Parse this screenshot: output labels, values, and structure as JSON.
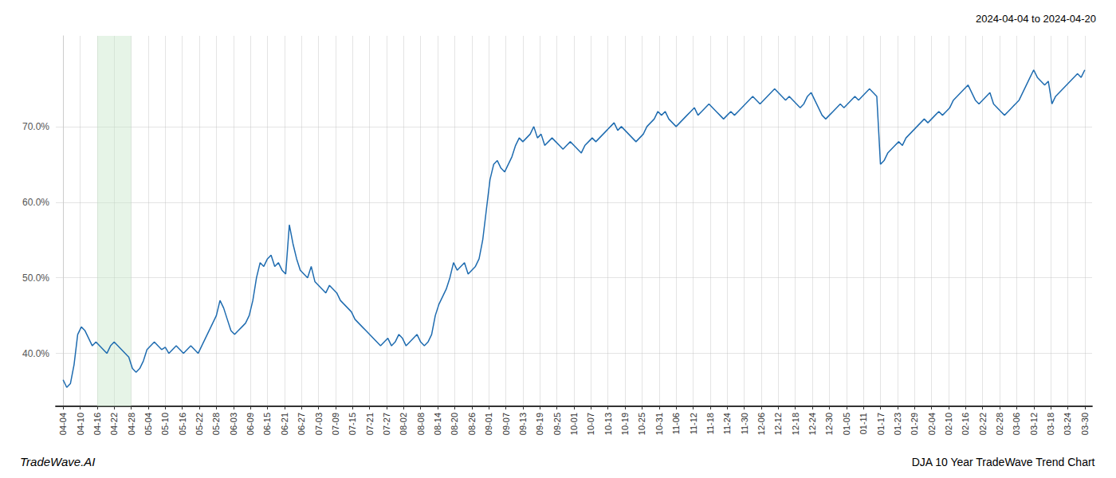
{
  "chart_data": {
    "type": "line",
    "title": "DJA 10 Year TradeWave Trend Chart",
    "subtitle": "2024-04-04 to 2024-04-20",
    "annotations": [
      "TradeWave.AI"
    ],
    "color": "#1f6cb0",
    "grid": true,
    "shaded": {
      "x": [
        9.333333,
        18.666667
      ],
      "color": "#c8e6c9"
    },
    "xlim": [
      -2,
      282
    ],
    "xticks": [
      {
        "value": 0,
        "label": "04-04"
      },
      {
        "value": 4.666667,
        "label": "04-10"
      },
      {
        "value": 9.333333,
        "label": "04-16"
      },
      {
        "value": 14,
        "label": "04-22"
      },
      {
        "value": 18.666667,
        "label": "04-28"
      },
      {
        "value": 23.333333,
        "label": "05-04"
      },
      {
        "value": 28,
        "label": "05-10"
      },
      {
        "value": 32.666667,
        "label": "05-16"
      },
      {
        "value": 37.333333,
        "label": "05-22"
      },
      {
        "value": 42,
        "label": "05-28"
      },
      {
        "value": 46.666667,
        "label": "06-03"
      },
      {
        "value": 51.333333,
        "label": "06-09"
      },
      {
        "value": 56,
        "label": "06-15"
      },
      {
        "value": 60.666667,
        "label": "06-21"
      },
      {
        "value": 65.333333,
        "label": "06-27"
      },
      {
        "value": 70,
        "label": "07-03"
      },
      {
        "value": 74.666667,
        "label": "07-09"
      },
      {
        "value": 79.333333,
        "label": "07-15"
      },
      {
        "value": 84,
        "label": "07-21"
      },
      {
        "value": 88.666667,
        "label": "07-27"
      },
      {
        "value": 93.333333,
        "label": "08-02"
      },
      {
        "value": 98,
        "label": "08-08"
      },
      {
        "value": 102.666667,
        "label": "08-14"
      },
      {
        "value": 107.333333,
        "label": "08-20"
      },
      {
        "value": 112,
        "label": "08-26"
      },
      {
        "value": 116.666667,
        "label": "09-01"
      },
      {
        "value": 121.333333,
        "label": "09-07"
      },
      {
        "value": 126,
        "label": "09-13"
      },
      {
        "value": 130.666667,
        "label": "09-19"
      },
      {
        "value": 135.333333,
        "label": "09-25"
      },
      {
        "value": 140,
        "label": "10-01"
      },
      {
        "value": 144.666667,
        "label": "10-07"
      },
      {
        "value": 149.333333,
        "label": "10-13"
      },
      {
        "value": 154,
        "label": "10-19"
      },
      {
        "value": 158.666667,
        "label": "10-25"
      },
      {
        "value": 163.333333,
        "label": "10-31"
      },
      {
        "value": 168,
        "label": "11-06"
      },
      {
        "value": 172.666667,
        "label": "11-12"
      },
      {
        "value": 177.333333,
        "label": "11-18"
      },
      {
        "value": 182,
        "label": "11-24"
      },
      {
        "value": 186.666667,
        "label": "11-30"
      },
      {
        "value": 191.333333,
        "label": "12-06"
      },
      {
        "value": 196,
        "label": "12-12"
      },
      {
        "value": 200.666667,
        "label": "12-18"
      },
      {
        "value": 205.333333,
        "label": "12-24"
      },
      {
        "value": 210,
        "label": "12-30"
      },
      {
        "value": 214.666667,
        "label": "01-05"
      },
      {
        "value": 219.333333,
        "label": "01-11"
      },
      {
        "value": 224,
        "label": "01-17"
      },
      {
        "value": 228.666667,
        "label": "01-23"
      },
      {
        "value": 233.333333,
        "label": "01-29"
      },
      {
        "value": 238,
        "label": "02-04"
      },
      {
        "value": 242.666667,
        "label": "02-10"
      },
      {
        "value": 247.333333,
        "label": "02-16"
      },
      {
        "value": 252,
        "label": "02-22"
      },
      {
        "value": 256.666667,
        "label": "02-28"
      },
      {
        "value": 261.333333,
        "label": "03-06"
      },
      {
        "value": 266,
        "label": "03-12"
      },
      {
        "value": 270.666667,
        "label": "03-18"
      },
      {
        "value": 275.333333,
        "label": "03-24"
      },
      {
        "value": 280,
        "label": "03-30"
      }
    ],
    "ylim": [
      33,
      82
    ],
    "yticks": [
      {
        "value": 40,
        "label": "40.0%"
      },
      {
        "value": 50,
        "label": "50.0%"
      },
      {
        "value": 60,
        "label": "60.0%"
      },
      {
        "value": 70,
        "label": "70.0%"
      }
    ],
    "values": [
      36.5,
      35.5,
      36.0,
      38.5,
      42.5,
      43.5,
      43.0,
      42.0,
      41.0,
      41.5,
      41.0,
      40.5,
      40.0,
      41.0,
      41.5,
      41.0,
      40.5,
      40.0,
      39.5,
      38.0,
      37.5,
      38.0,
      39.0,
      40.5,
      41.0,
      41.5,
      41.0,
      40.5,
      40.8,
      40.0,
      40.5,
      41.0,
      40.5,
      40.0,
      40.5,
      41.0,
      40.5,
      40.0,
      41.0,
      42.0,
      43.0,
      44.0,
      45.0,
      47.0,
      46.0,
      44.5,
      43.0,
      42.5,
      43.0,
      43.5,
      44.0,
      45.0,
      47.0,
      50.0,
      52.0,
      51.5,
      52.5,
      53.0,
      51.5,
      52.0,
      51.0,
      50.5,
      57.0,
      54.5,
      52.5,
      51.0,
      50.5,
      50.0,
      51.5,
      49.5,
      49.0,
      48.5,
      48.0,
      49.0,
      48.5,
      48.0,
      47.0,
      46.5,
      46.0,
      45.5,
      44.5,
      44.0,
      43.5,
      43.0,
      42.5,
      42.0,
      41.5,
      41.0,
      41.5,
      42.0,
      41.0,
      41.5,
      42.5,
      42.0,
      41.0,
      41.5,
      42.0,
      42.5,
      41.5,
      41.0,
      41.5,
      42.5,
      45.0,
      46.5,
      47.5,
      48.5,
      50.0,
      52.0,
      51.0,
      51.5,
      52.0,
      50.5,
      51.0,
      51.5,
      52.5,
      55.0,
      59.0,
      63.0,
      65.0,
      65.5,
      64.5,
      64.0,
      65.0,
      66.0,
      67.5,
      68.5,
      68.0,
      68.5,
      69.0,
      70.0,
      68.5,
      69.0,
      67.5,
      68.0,
      68.5,
      68.0,
      67.5,
      67.0,
      67.5,
      68.0,
      67.5,
      67.0,
      66.5,
      67.5,
      68.0,
      68.5,
      68.0,
      68.5,
      69.0,
      69.5,
      70.0,
      70.5,
      69.5,
      70.0,
      69.5,
      69.0,
      68.5,
      68.0,
      68.5,
      69.0,
      70.0,
      70.5,
      71.0,
      72.0,
      71.5,
      72.0,
      71.0,
      70.5,
      70.0,
      70.5,
      71.0,
      71.5,
      72.0,
      72.5,
      71.5,
      72.0,
      72.5,
      73.0,
      72.5,
      72.0,
      71.5,
      71.0,
      71.5,
      72.0,
      71.5,
      72.0,
      72.5,
      73.0,
      73.5,
      74.0,
      73.5,
      73.0,
      73.5,
      74.0,
      74.5,
      75.0,
      74.5,
      74.0,
      73.5,
      74.0,
      73.5,
      73.0,
      72.5,
      73.0,
      74.0,
      74.5,
      73.5,
      72.5,
      71.5,
      71.0,
      71.5,
      72.0,
      72.5,
      73.0,
      72.5,
      73.0,
      73.5,
      74.0,
      73.5,
      74.0,
      74.5,
      75.0,
      74.5,
      74.0,
      65.0,
      65.5,
      66.5,
      67.0,
      67.5,
      68.0,
      67.5,
      68.5,
      69.0,
      69.5,
      70.0,
      70.5,
      71.0,
      70.5,
      71.0,
      71.5,
      72.0,
      71.5,
      72.0,
      72.5,
      73.5,
      74.0,
      74.5,
      75.0,
      75.5,
      74.5,
      73.5,
      73.0,
      73.5,
      74.0,
      74.5,
      73.0,
      72.5,
      72.0,
      71.5,
      72.0,
      72.5,
      73.0,
      73.5,
      74.5,
      75.5,
      76.5,
      77.5,
      76.5,
      76.0,
      75.5,
      76.0,
      73.0,
      74.0,
      74.5,
      75.0,
      75.5,
      76.0,
      76.5,
      77.0,
      76.5,
      77.5
    ]
  }
}
